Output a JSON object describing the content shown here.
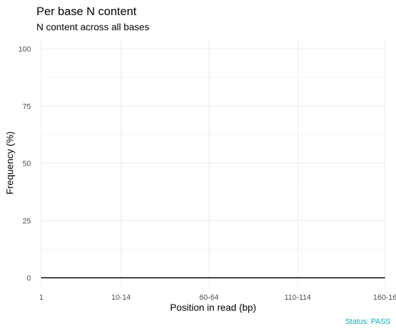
{
  "chart_data": {
    "type": "line",
    "title": "Per base N content",
    "subtitle": "N content across all bases",
    "xlabel": "Position in read (bp)",
    "ylabel": "Frequency (%)",
    "categories": [
      "1",
      "10-14",
      "60-64",
      "110-114",
      "160-16"
    ],
    "y_ticks": [
      0,
      25,
      50,
      75,
      100
    ],
    "ylim": [
      0,
      100
    ],
    "grid": true,
    "series": [
      {
        "values": [
          0,
          0,
          0,
          0,
          0
        ]
      }
    ],
    "status": "Status: PASS",
    "colors": {
      "line": "#000000",
      "grid": "#ebebeb",
      "status": "#00b0b8",
      "text": "#000000",
      "tick_text": "#4d4d4d"
    }
  }
}
